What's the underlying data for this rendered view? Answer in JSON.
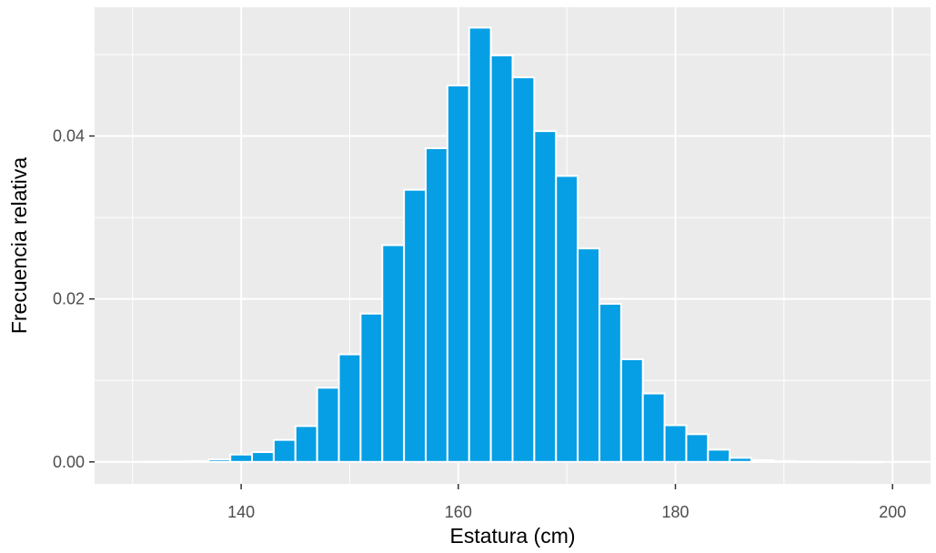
{
  "chart_data": {
    "type": "bar",
    "subtype": "histogram",
    "xlabel": "Estatura (cm)",
    "ylabel": "Frecuencia relativa",
    "xlim": [
      126.5,
      203.5
    ],
    "ylim": [
      -0.0027,
      0.0558
    ],
    "grid": true,
    "legend": "none",
    "bar_color": "#069fe5",
    "bar_outline": "#ffffff",
    "panel_background": "#ebebeb",
    "x_ticks": [
      140,
      160,
      180,
      200
    ],
    "x_tick_labels": [
      "140",
      "160",
      "180",
      "200"
    ],
    "y_ticks": [
      0,
      0.02,
      0.04
    ],
    "y_tick_labels": [
      "0.00",
      "0.02",
      "0.04"
    ],
    "bin_width": 2,
    "bins": [
      {
        "x": 132,
        "value": 3e-05
      },
      {
        "x": 134,
        "value": 5e-05
      },
      {
        "x": 136,
        "value": 0.0001
      },
      {
        "x": 138,
        "value": 0.0003
      },
      {
        "x": 140,
        "value": 0.0009
      },
      {
        "x": 142,
        "value": 0.0012
      },
      {
        "x": 144,
        "value": 0.0027
      },
      {
        "x": 146,
        "value": 0.0044
      },
      {
        "x": 148,
        "value": 0.0091
      },
      {
        "x": 150,
        "value": 0.0132
      },
      {
        "x": 152,
        "value": 0.0182
      },
      {
        "x": 154,
        "value": 0.0266
      },
      {
        "x": 156,
        "value": 0.0334
      },
      {
        "x": 158,
        "value": 0.0385
      },
      {
        "x": 160,
        "value": 0.0462
      },
      {
        "x": 162,
        "value": 0.0533
      },
      {
        "x": 164,
        "value": 0.0499
      },
      {
        "x": 166,
        "value": 0.0472
      },
      {
        "x": 168,
        "value": 0.0406
      },
      {
        "x": 170,
        "value": 0.0351
      },
      {
        "x": 172,
        "value": 0.0262
      },
      {
        "x": 174,
        "value": 0.0194
      },
      {
        "x": 176,
        "value": 0.0126
      },
      {
        "x": 178,
        "value": 0.0084
      },
      {
        "x": 180,
        "value": 0.0045
      },
      {
        "x": 182,
        "value": 0.0034
      },
      {
        "x": 184,
        "value": 0.0015
      },
      {
        "x": 186,
        "value": 0.0005
      },
      {
        "x": 188,
        "value": 0.0002
      },
      {
        "x": 190,
        "value": 0.0001
      },
      {
        "x": 192,
        "value": 5e-05
      },
      {
        "x": 194,
        "value": 3e-05
      },
      {
        "x": 196,
        "value": 2e-05
      },
      {
        "x": 198,
        "value": 1e-05
      }
    ]
  }
}
